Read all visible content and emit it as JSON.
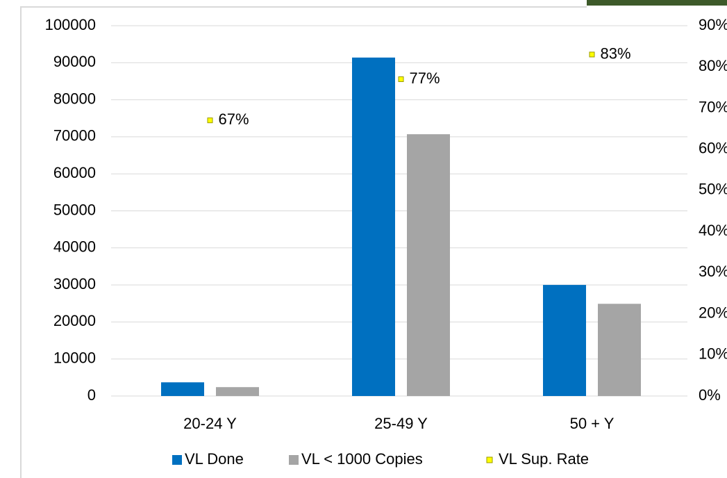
{
  "chart_data": {
    "type": "bar",
    "categories": [
      "20-24 Y",
      "25-49 Y",
      "50 + Y"
    ],
    "series": [
      {
        "name": "VL Done",
        "color": "#0070c0",
        "values": [
          3700,
          91400,
          30000
        ]
      },
      {
        "name": "VL < 1000 Copies",
        "color": "#a5a5a5",
        "values": [
          2400,
          70700,
          24900
        ]
      },
      {
        "name": "VL Sup. Rate",
        "color": "#ffff00",
        "type": "scatter",
        "axis": "y2",
        "values": [
          67,
          77,
          83
        ],
        "value_labels": [
          "67%",
          "77%",
          "83%"
        ]
      }
    ],
    "ylim": [
      0,
      100000
    ],
    "yticks": [
      0,
      10000,
      20000,
      30000,
      40000,
      50000,
      60000,
      70000,
      80000,
      90000,
      100000
    ],
    "y2lim": [
      0,
      90
    ],
    "y2ticks": [
      {
        "value": 0,
        "label": "0%"
      },
      {
        "value": 10,
        "label": "10%"
      },
      {
        "value": 20,
        "label": "20%"
      },
      {
        "value": 30,
        "label": "30%"
      },
      {
        "value": 40,
        "label": "40%"
      },
      {
        "value": 50,
        "label": "50%"
      },
      {
        "value": 60,
        "label": "60%"
      },
      {
        "value": 70,
        "label": "70%"
      },
      {
        "value": 80,
        "label": "80%"
      },
      {
        "value": 90,
        "label": "90%"
      }
    ],
    "grid": true,
    "legend": "bottom"
  }
}
